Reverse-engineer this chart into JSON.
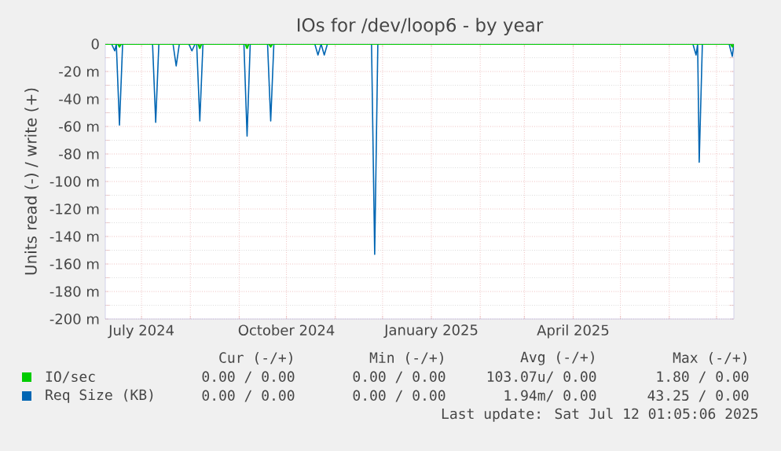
{
  "chart_data": {
    "type": "line",
    "title": "IOs for /dev/loop6 - by year",
    "ylabel": "Units read (-) / write (+)",
    "xlim": [
      "2024-06-08",
      "2025-07-12"
    ],
    "xticks": [
      {
        "value": "2024-07-01",
        "label": "July 2024"
      },
      {
        "value": "2024-08-01",
        "label": null
      },
      {
        "value": "2024-09-01",
        "label": null
      },
      {
        "value": "2024-10-01",
        "label": "October 2024"
      },
      {
        "value": "2024-11-01",
        "label": null
      },
      {
        "value": "2024-12-01",
        "label": null
      },
      {
        "value": "2025-01-01",
        "label": "January 2025"
      },
      {
        "value": "2025-02-01",
        "label": null
      },
      {
        "value": "2025-03-01",
        "label": null
      },
      {
        "value": "2025-04-01",
        "label": "April 2025"
      },
      {
        "value": "2025-05-01",
        "label": null
      },
      {
        "value": "2025-06-01",
        "label": null
      },
      {
        "value": "2025-07-01",
        "label": null
      }
    ],
    "ylim": [
      -200,
      0
    ],
    "yticks": [
      {
        "value": -200,
        "label": "-200 m"
      },
      {
        "value": -180,
        "label": "-180 m"
      },
      {
        "value": -160,
        "label": "-160 m"
      },
      {
        "value": -140,
        "label": "-140 m"
      },
      {
        "value": -120,
        "label": "-120 m"
      },
      {
        "value": -100,
        "label": "-100 m"
      },
      {
        "value": -80,
        "label": "-80 m"
      },
      {
        "value": -60,
        "label": "-60 m"
      },
      {
        "value": -40,
        "label": "-40 m"
      },
      {
        "value": -20,
        "label": "-20 m"
      },
      0
    ],
    "grid": true,
    "legend": "bottom",
    "line_style": "solid",
    "series": [
      {
        "name": "Req Size (KB)",
        "color": "#0066b3",
        "x": [
          "2024-06-08",
          "2024-06-12",
          "2024-06-14",
          "2024-06-15",
          "2024-06-17",
          "2024-06-19",
          "2024-07-08",
          "2024-07-10",
          "2024-07-12",
          "2024-07-21",
          "2024-07-23",
          "2024-07-25",
          "2024-07-31",
          "2024-08-02",
          "2024-08-04",
          "2024-08-05",
          "2024-08-07",
          "2024-08-09",
          "2024-09-04",
          "2024-09-06",
          "2024-09-08",
          "2024-09-19",
          "2024-09-21",
          "2024-09-23",
          "2024-10-19",
          "2024-10-21",
          "2024-10-23",
          "2024-10-25",
          "2024-10-27",
          "2024-11-24",
          "2024-11-26",
          "2024-11-28",
          "2025-06-16",
          "2025-06-18",
          "2025-06-19",
          "2025-06-20",
          "2025-06-22",
          "2025-07-09",
          "2025-07-11",
          "2025-07-12"
        ],
        "values": [
          0,
          0,
          -5,
          0,
          -59,
          0,
          0,
          -57,
          0,
          0,
          -16,
          0,
          0,
          -5,
          0,
          0,
          -56,
          0,
          0,
          -67,
          0,
          0,
          -56,
          0,
          0,
          -8,
          0,
          -8,
          0,
          0,
          -153,
          0,
          0,
          -8,
          0,
          -86,
          0,
          0,
          -9,
          0
        ]
      },
      {
        "name": "IO/sec",
        "color": "#00cc00",
        "x": [
          "2024-06-08",
          "2024-06-16",
          "2024-06-17",
          "2024-06-18",
          "2024-08-06",
          "2024-08-07",
          "2024-08-08",
          "2024-09-05",
          "2024-09-06",
          "2024-09-07",
          "2024-09-20",
          "2024-09-21",
          "2024-09-22",
          "2025-07-10",
          "2025-07-11",
          "2025-07-12"
        ],
        "values": [
          0,
          0,
          -2,
          0,
          0,
          -3,
          0,
          0,
          -3,
          0,
          0,
          -2,
          0,
          0,
          -2,
          0
        ]
      }
    ],
    "annotations": [
      "Cur (-/+)",
      "Min (-/+)",
      "Avg (-/+)",
      "Max (-/+)",
      "0.00 / 0.00",
      "0.00 / 0.00",
      "103.07u/ 0.00",
      "1.80 / 0.00",
      "0.00 / 0.00",
      "0.00 / 0.00",
      "1.94m/ 0.00",
      "43.25 / 0.00",
      "Last update: Sat Jul 12 01:05:06 2025"
    ]
  }
}
